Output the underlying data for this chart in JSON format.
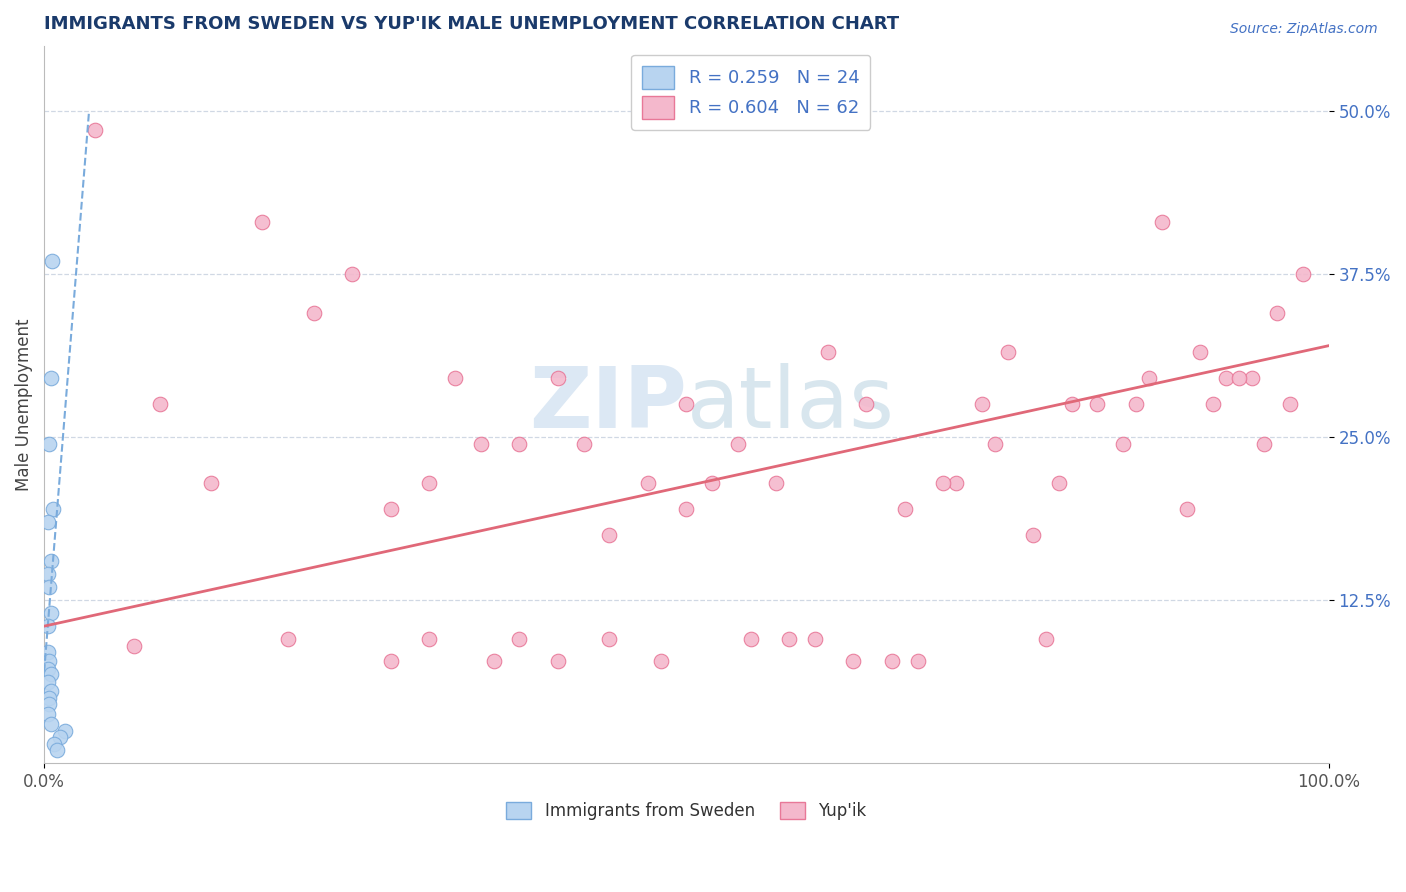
{
  "title": "IMMIGRANTS FROM SWEDEN VS YUP'IK MALE UNEMPLOYMENT CORRELATION CHART",
  "source_text": "Source: ZipAtlas.com",
  "xlim": [
    0.0,
    1.0
  ],
  "ylim": [
    0.0,
    0.55
  ],
  "ylabel": "Male Unemployment",
  "legend_labels": [
    "Immigrants from Sweden",
    "Yup'ik"
  ],
  "legend_r_blue": "R = 0.259",
  "legend_n_blue": "N = 24",
  "legend_r_pink": "R = 0.604",
  "legend_n_pink": "N = 62",
  "blue_fill": "#b8d4f0",
  "pink_fill": "#f4b8cc",
  "blue_edge": "#7aabdc",
  "pink_edge": "#e87898",
  "blue_line_color": "#7aabdc",
  "pink_line_color": "#e06878",
  "title_color": "#1a3a6b",
  "source_color": "#4472c4",
  "tick_color": "#4472c4",
  "watermark_color": "#dce8f4",
  "grid_color": "#d0d8e4",
  "ytick_vals": [
    0.125,
    0.25,
    0.375,
    0.5
  ],
  "ytick_labels": [
    "12.5%",
    "25.0%",
    "37.5%",
    "50.0%"
  ],
  "xtick_vals": [
    0.0,
    1.0
  ],
  "xtick_labels": [
    "0.0%",
    "100.0%"
  ],
  "blue_scatter_x": [
    0.006,
    0.005,
    0.004,
    0.007,
    0.003,
    0.005,
    0.003,
    0.004,
    0.005,
    0.003,
    0.003,
    0.004,
    0.003,
    0.005,
    0.003,
    0.005,
    0.004,
    0.004,
    0.003,
    0.005,
    0.016,
    0.012,
    0.008,
    0.01
  ],
  "blue_scatter_y": [
    0.385,
    0.295,
    0.245,
    0.195,
    0.185,
    0.155,
    0.145,
    0.135,
    0.115,
    0.105,
    0.085,
    0.078,
    0.072,
    0.068,
    0.062,
    0.055,
    0.05,
    0.045,
    0.038,
    0.03,
    0.025,
    0.02,
    0.015,
    0.01
  ],
  "pink_scatter_x": [
    0.04,
    0.07,
    0.09,
    0.13,
    0.17,
    0.19,
    0.21,
    0.24,
    0.27,
    0.3,
    0.32,
    0.35,
    0.37,
    0.4,
    0.42,
    0.44,
    0.48,
    0.5,
    0.52,
    0.55,
    0.57,
    0.6,
    0.63,
    0.66,
    0.68,
    0.71,
    0.73,
    0.75,
    0.78,
    0.8,
    0.82,
    0.85,
    0.87,
    0.9,
    0.92,
    0.94,
    0.96,
    0.98,
    0.97,
    0.95,
    0.93,
    0.91,
    0.89,
    0.86,
    0.84,
    0.79,
    0.77,
    0.74,
    0.7,
    0.67,
    0.64,
    0.61,
    0.58,
    0.54,
    0.5,
    0.47,
    0.44,
    0.4,
    0.37,
    0.34,
    0.3,
    0.27
  ],
  "pink_scatter_y": [
    0.485,
    0.09,
    0.275,
    0.215,
    0.415,
    0.095,
    0.345,
    0.375,
    0.078,
    0.095,
    0.295,
    0.078,
    0.095,
    0.078,
    0.245,
    0.095,
    0.078,
    0.195,
    0.215,
    0.095,
    0.215,
    0.095,
    0.078,
    0.078,
    0.078,
    0.215,
    0.275,
    0.315,
    0.095,
    0.275,
    0.275,
    0.275,
    0.415,
    0.315,
    0.295,
    0.295,
    0.345,
    0.375,
    0.275,
    0.245,
    0.295,
    0.275,
    0.195,
    0.295,
    0.245,
    0.215,
    0.175,
    0.245,
    0.215,
    0.195,
    0.275,
    0.315,
    0.095,
    0.245,
    0.275,
    0.215,
    0.175,
    0.295,
    0.245,
    0.245,
    0.215,
    0.195
  ],
  "blue_line_x": [
    0.0,
    0.035
  ],
  "blue_line_y": [
    0.07,
    0.5
  ],
  "pink_line_x": [
    0.0,
    1.0
  ],
  "pink_line_y": [
    0.105,
    0.32
  ]
}
